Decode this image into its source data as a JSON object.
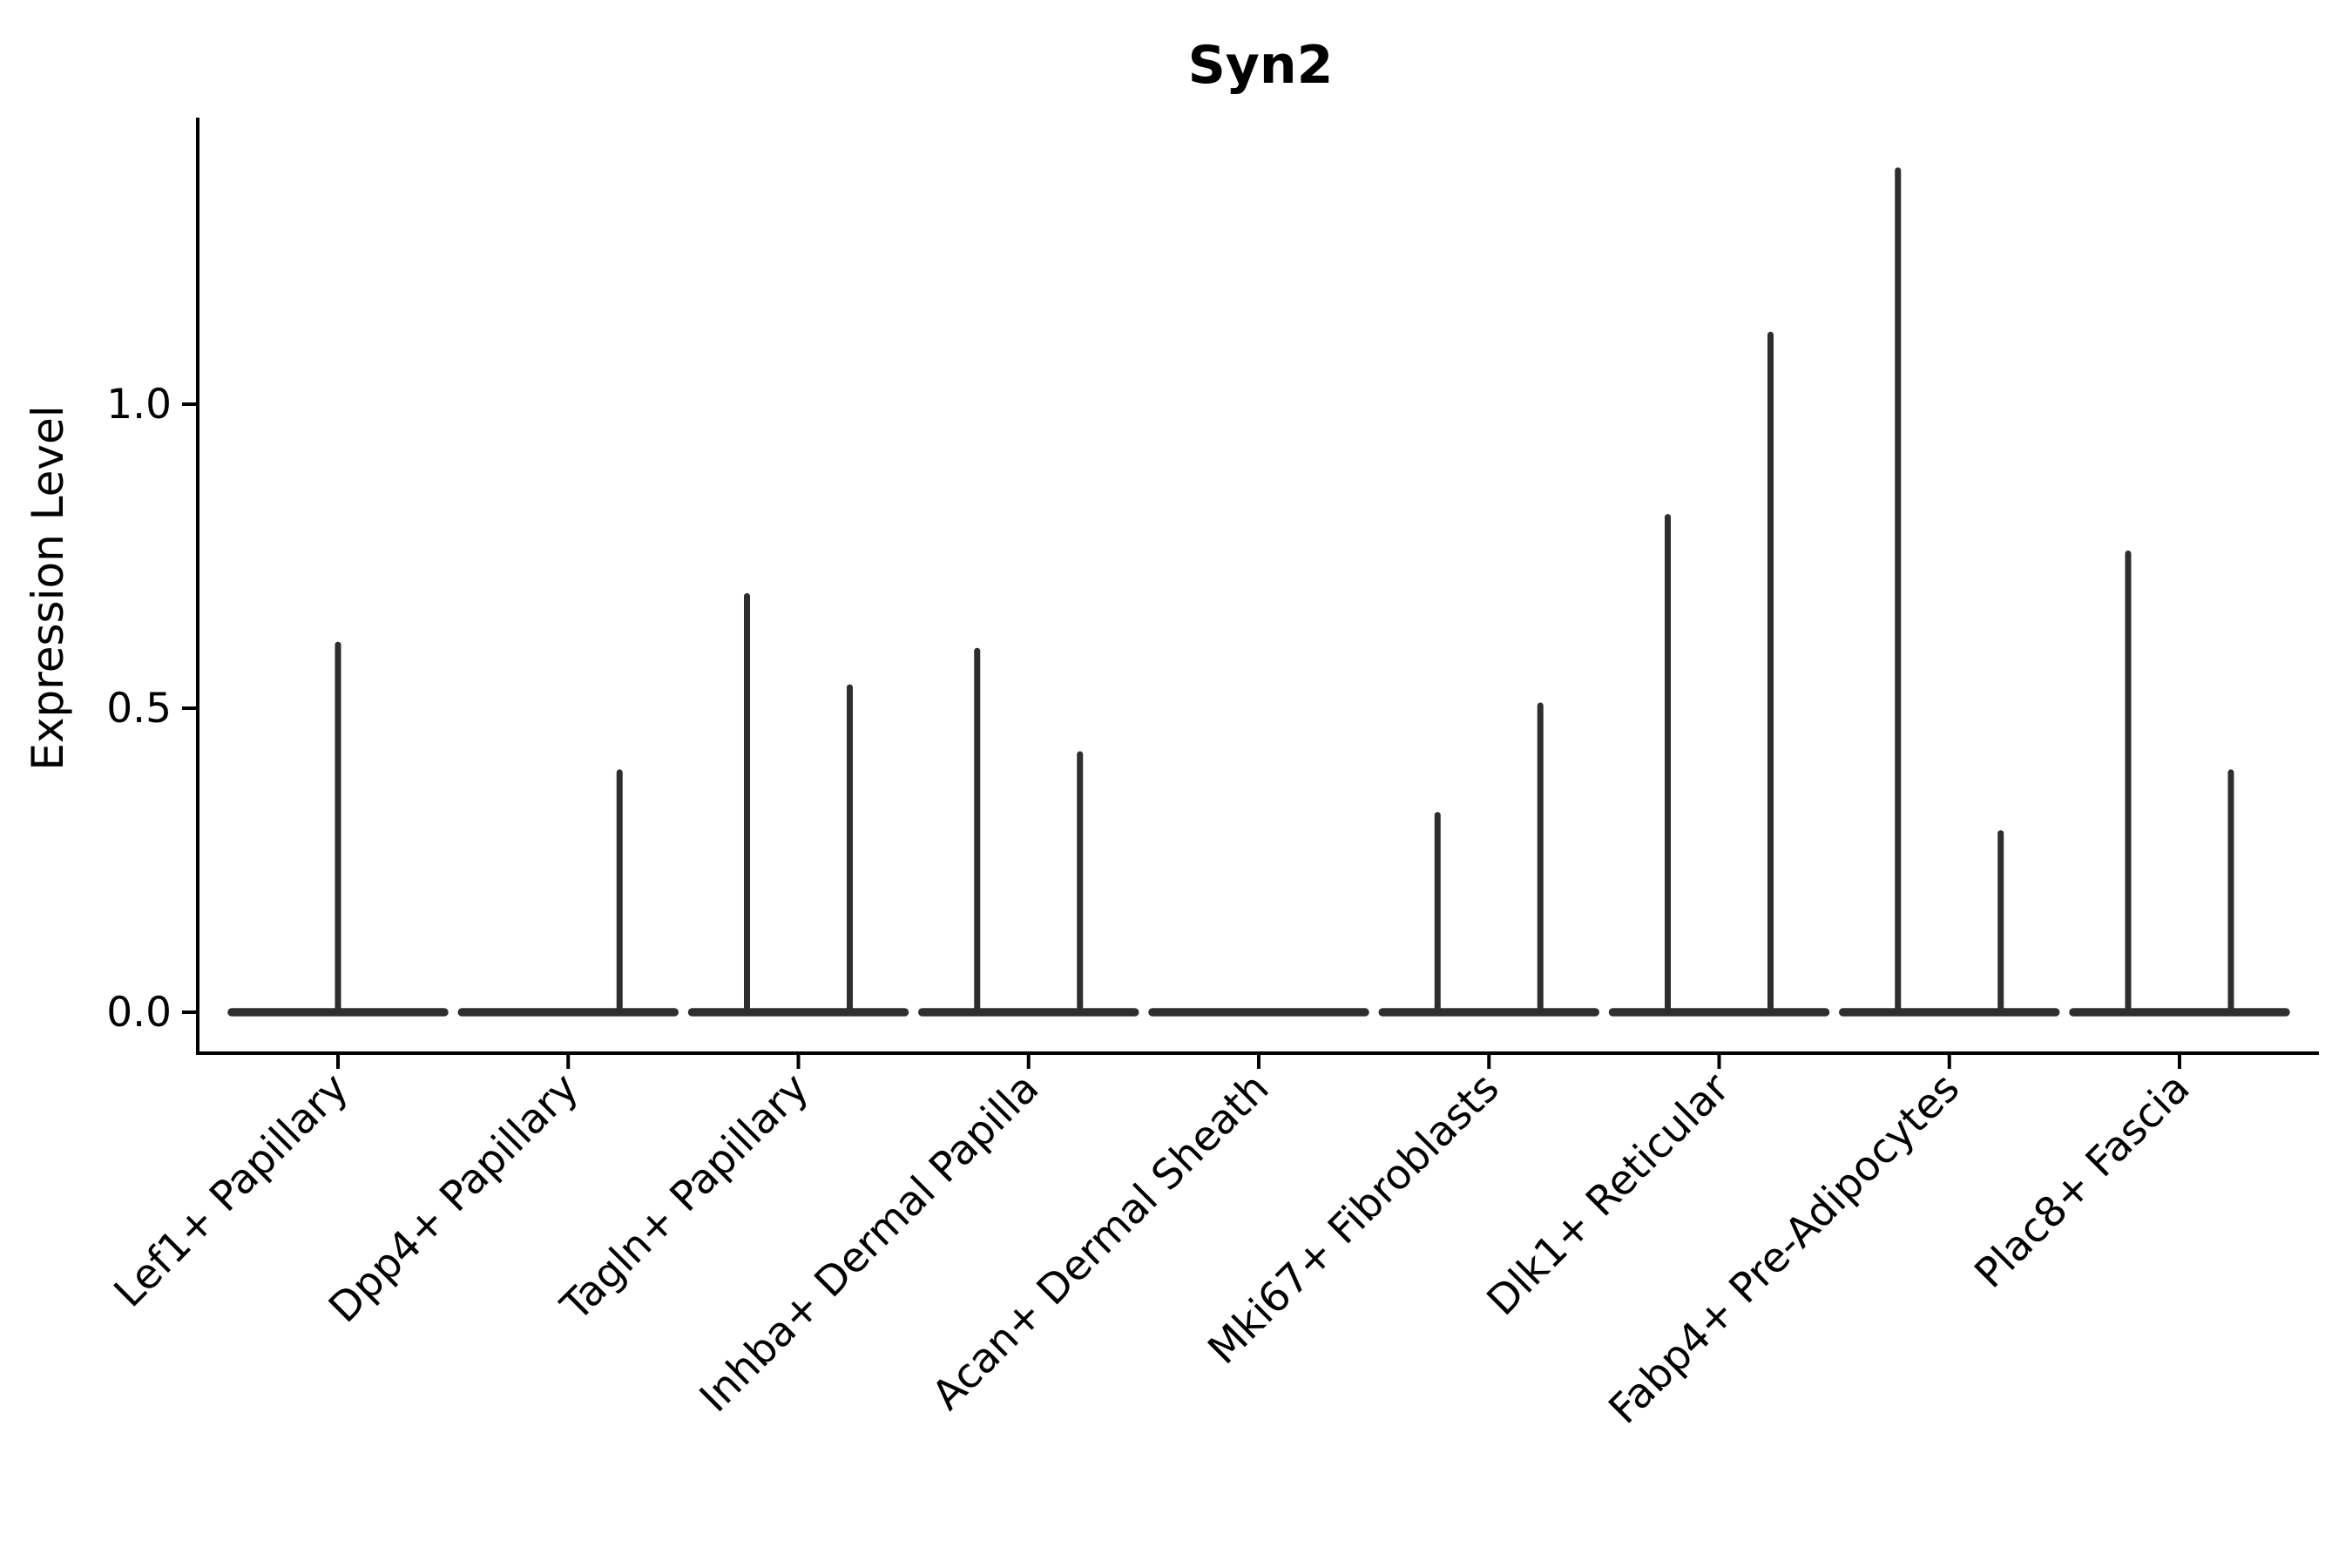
{
  "title": "Syn2",
  "ylabel": "Expression Level",
  "chart_data": {
    "type": "violin",
    "title": "Syn2",
    "xlabel": "",
    "ylabel": "Expression Level",
    "categories": [
      "Lef1+ Papillary",
      "Dpp4+ Papillary",
      "Tagln+ Papillary",
      "Inhba+ Dermal Papilla",
      "Acan+ Dermal Sheath",
      "Mki67+ Fibroblasts",
      "Dlk1+ Reticular",
      "Fabp4+ Pre-Adipocytes",
      "Plac8+ Fascia"
    ],
    "violins": [
      {
        "category": "Lef1+ Papillary",
        "spikes": [
          {
            "pos": "center",
            "value": 0.61
          }
        ]
      },
      {
        "category": "Dpp4+ Papillary",
        "spikes": [
          {
            "pos": "right",
            "value": 0.4
          }
        ]
      },
      {
        "category": "Tagln+ Papillary",
        "spikes": [
          {
            "pos": "left",
            "value": 0.69
          },
          {
            "pos": "right",
            "value": 0.54
          }
        ]
      },
      {
        "category": "Inhba+ Dermal Papilla",
        "spikes": [
          {
            "pos": "left",
            "value": 0.6
          },
          {
            "pos": "right",
            "value": 0.43
          }
        ]
      },
      {
        "category": "Acan+ Dermal Sheath",
        "spikes": []
      },
      {
        "category": "Mki67+ Fibroblasts",
        "spikes": [
          {
            "pos": "left",
            "value": 0.33
          },
          {
            "pos": "right",
            "value": 0.51
          }
        ]
      },
      {
        "category": "Dlk1+ Reticular",
        "spikes": [
          {
            "pos": "left",
            "value": 0.82
          },
          {
            "pos": "right",
            "value": 1.12
          }
        ]
      },
      {
        "category": "Fabp4+ Pre-Adipocytes",
        "spikes": [
          {
            "pos": "left",
            "value": 1.39
          },
          {
            "pos": "right",
            "value": 0.3
          }
        ]
      },
      {
        "category": "Plac8+ Fascia",
        "spikes": [
          {
            "pos": "left",
            "value": 0.76
          },
          {
            "pos": "right",
            "value": 0.4
          }
        ]
      }
    ],
    "baseline_value": 0.0,
    "yticks": [
      {
        "value": 0.0,
        "label": "0.0"
      },
      {
        "value": 0.5,
        "label": "0.5"
      },
      {
        "value": 1.0,
        "label": "1.0"
      }
    ],
    "ylim": [
      0,
      1.47
    ],
    "grid": false,
    "legend": false,
    "colors": {
      "violin": "#2e2e2e",
      "axis": "#000000",
      "text": "#000000",
      "background": "#ffffff"
    }
  }
}
